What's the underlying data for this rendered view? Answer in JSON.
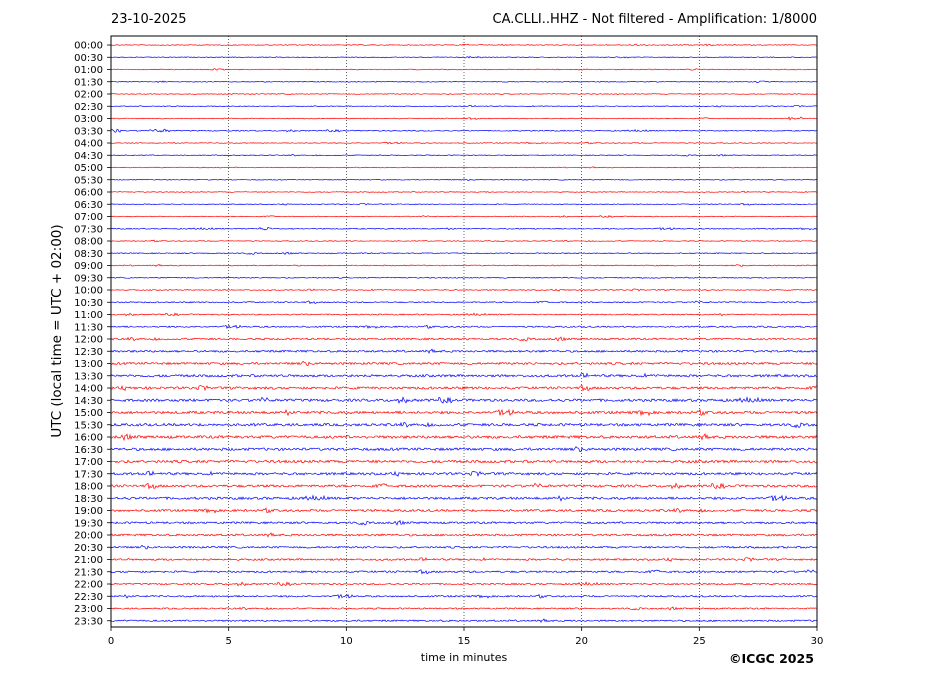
{
  "header": {
    "date": "23-10-2025",
    "title": "CA.CLLI..HHZ - Not filtered - Amplification: 1/8000"
  },
  "footer": {
    "copyright": "©ICGC 2025"
  },
  "chart_data": {
    "type": "line",
    "title": "CA.CLLI..HHZ - Not filtered - Amplification: 1/8000",
    "xlabel": "time in minutes",
    "ylabel": "UTC (local time = UTC + 02:00)",
    "xlim": [
      0,
      30
    ],
    "x_ticks": [
      0,
      5,
      10,
      15,
      20,
      25,
      30
    ],
    "vertical_gridlines": [
      5,
      10,
      15,
      20,
      25
    ],
    "trace_colors": [
      "#ff0000",
      "#0000ff"
    ],
    "rows": [
      {
        "label": "00:00",
        "color": "#ff0000",
        "amplitude": 0.4
      },
      {
        "label": "00:30",
        "color": "#0000ff",
        "amplitude": 0.4
      },
      {
        "label": "01:00",
        "color": "#ff0000",
        "amplitude": 0.4
      },
      {
        "label": "01:30",
        "color": "#0000ff",
        "amplitude": 0.4
      },
      {
        "label": "02:00",
        "color": "#ff0000",
        "amplitude": 0.4
      },
      {
        "label": "02:30",
        "color": "#0000ff",
        "amplitude": 0.4
      },
      {
        "label": "03:00",
        "color": "#ff0000",
        "amplitude": 0.4,
        "event_minutes": [
          28.8,
          29.4
        ]
      },
      {
        "label": "03:30",
        "color": "#0000ff",
        "amplitude": 0.5,
        "event_minutes": [
          0.0,
          0.5,
          1.7,
          2.6
        ]
      },
      {
        "label": "04:00",
        "color": "#ff0000",
        "amplitude": 0.4
      },
      {
        "label": "04:30",
        "color": "#0000ff",
        "amplitude": 0.4
      },
      {
        "label": "05:00",
        "color": "#ff0000",
        "amplitude": 0.4
      },
      {
        "label": "05:30",
        "color": "#0000ff",
        "amplitude": 0.4
      },
      {
        "label": "06:00",
        "color": "#ff0000",
        "amplitude": 0.4
      },
      {
        "label": "06:30",
        "color": "#0000ff",
        "amplitude": 0.4
      },
      {
        "label": "07:00",
        "color": "#ff0000",
        "amplitude": 0.4
      },
      {
        "label": "07:30",
        "color": "#0000ff",
        "amplitude": 0.5,
        "event_minutes": [
          6.3,
          6.8
        ]
      },
      {
        "label": "08:00",
        "color": "#ff0000",
        "amplitude": 0.4
      },
      {
        "label": "08:30",
        "color": "#0000ff",
        "amplitude": 0.5
      },
      {
        "label": "09:00",
        "color": "#ff0000",
        "amplitude": 0.5
      },
      {
        "label": "09:30",
        "color": "#0000ff",
        "amplitude": 0.5
      },
      {
        "label": "10:00",
        "color": "#ff0000",
        "amplitude": 0.5
      },
      {
        "label": "10:30",
        "color": "#0000ff",
        "amplitude": 0.6
      },
      {
        "label": "11:00",
        "color": "#ff0000",
        "amplitude": 0.6
      },
      {
        "label": "11:30",
        "color": "#0000ff",
        "amplitude": 0.7
      },
      {
        "label": "12:00",
        "color": "#ff0000",
        "amplitude": 0.9
      },
      {
        "label": "12:30",
        "color": "#0000ff",
        "amplitude": 1.0
      },
      {
        "label": "13:00",
        "color": "#ff0000",
        "amplitude": 1.1
      },
      {
        "label": "13:30",
        "color": "#0000ff",
        "amplitude": 1.2
      },
      {
        "label": "14:00",
        "color": "#ff0000",
        "amplitude": 1.2
      },
      {
        "label": "14:30",
        "color": "#0000ff",
        "amplitude": 1.3
      },
      {
        "label": "15:00",
        "color": "#ff0000",
        "amplitude": 1.3
      },
      {
        "label": "15:30",
        "color": "#0000ff",
        "amplitude": 1.3
      },
      {
        "label": "16:00",
        "color": "#ff0000",
        "amplitude": 1.4
      },
      {
        "label": "16:30",
        "color": "#0000ff",
        "amplitude": 1.3
      },
      {
        "label": "17:00",
        "color": "#ff0000",
        "amplitude": 1.3
      },
      {
        "label": "17:30",
        "color": "#0000ff",
        "amplitude": 1.2
      },
      {
        "label": "18:00",
        "color": "#ff0000",
        "amplitude": 1.2
      },
      {
        "label": "18:30",
        "color": "#0000ff",
        "amplitude": 1.2
      },
      {
        "label": "19:00",
        "color": "#ff0000",
        "amplitude": 1.1
      },
      {
        "label": "19:30",
        "color": "#0000ff",
        "amplitude": 1.0
      },
      {
        "label": "20:00",
        "color": "#ff0000",
        "amplitude": 1.0
      },
      {
        "label": "20:30",
        "color": "#0000ff",
        "amplitude": 0.9
      },
      {
        "label": "21:00",
        "color": "#ff0000",
        "amplitude": 0.9
      },
      {
        "label": "21:30",
        "color": "#0000ff",
        "amplitude": 0.9
      },
      {
        "label": "22:00",
        "color": "#ff0000",
        "amplitude": 0.8
      },
      {
        "label": "22:30",
        "color": "#0000ff",
        "amplitude": 0.8
      },
      {
        "label": "23:00",
        "color": "#ff0000",
        "amplitude": 0.7
      },
      {
        "label": "23:30",
        "color": "#0000ff",
        "amplitude": 0.8
      }
    ]
  }
}
